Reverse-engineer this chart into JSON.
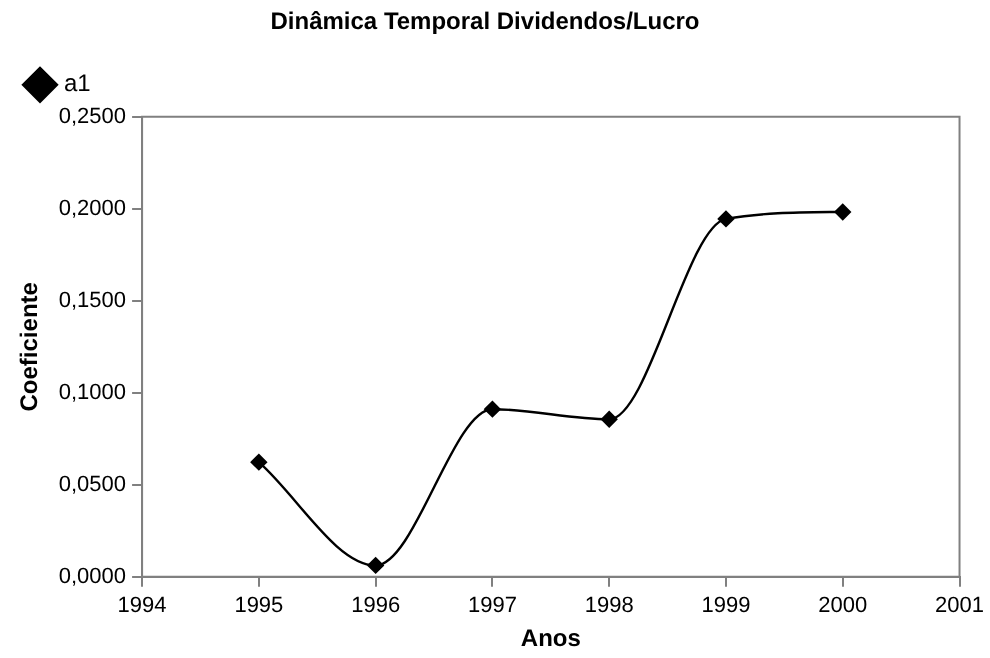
{
  "chart_data": {
    "type": "line",
    "title": "Dinâmica Temporal Dividendos/Lucro",
    "xlabel": "Anos",
    "ylabel": "Coeficiente",
    "x": [
      1995,
      1996,
      1997,
      1998,
      1999,
      2000
    ],
    "series": [
      {
        "name": "a1",
        "color": "#000000",
        "values": [
          0.0623,
          0.0062,
          0.0911,
          0.0856,
          0.1945,
          0.1983
        ]
      }
    ],
    "xlim": [
      1994,
      2001
    ],
    "xticks": [
      1994,
      1995,
      1996,
      1997,
      1998,
      1999,
      2000,
      2001
    ],
    "ylim": [
      0,
      0.25
    ],
    "yticks": [
      {
        "value": 0,
        "label": "0,0000"
      },
      {
        "value": 0.05,
        "label": "0,0500"
      },
      {
        "value": 0.1,
        "label": "0,1000"
      },
      {
        "value": 0.15,
        "label": "0,1500"
      },
      {
        "value": 0.2,
        "label": "0,2000"
      },
      {
        "value": 0.25,
        "label": "0,2500"
      }
    ],
    "grid": false,
    "legend": "top left",
    "marker": "diamond",
    "line_style": "solid"
  }
}
